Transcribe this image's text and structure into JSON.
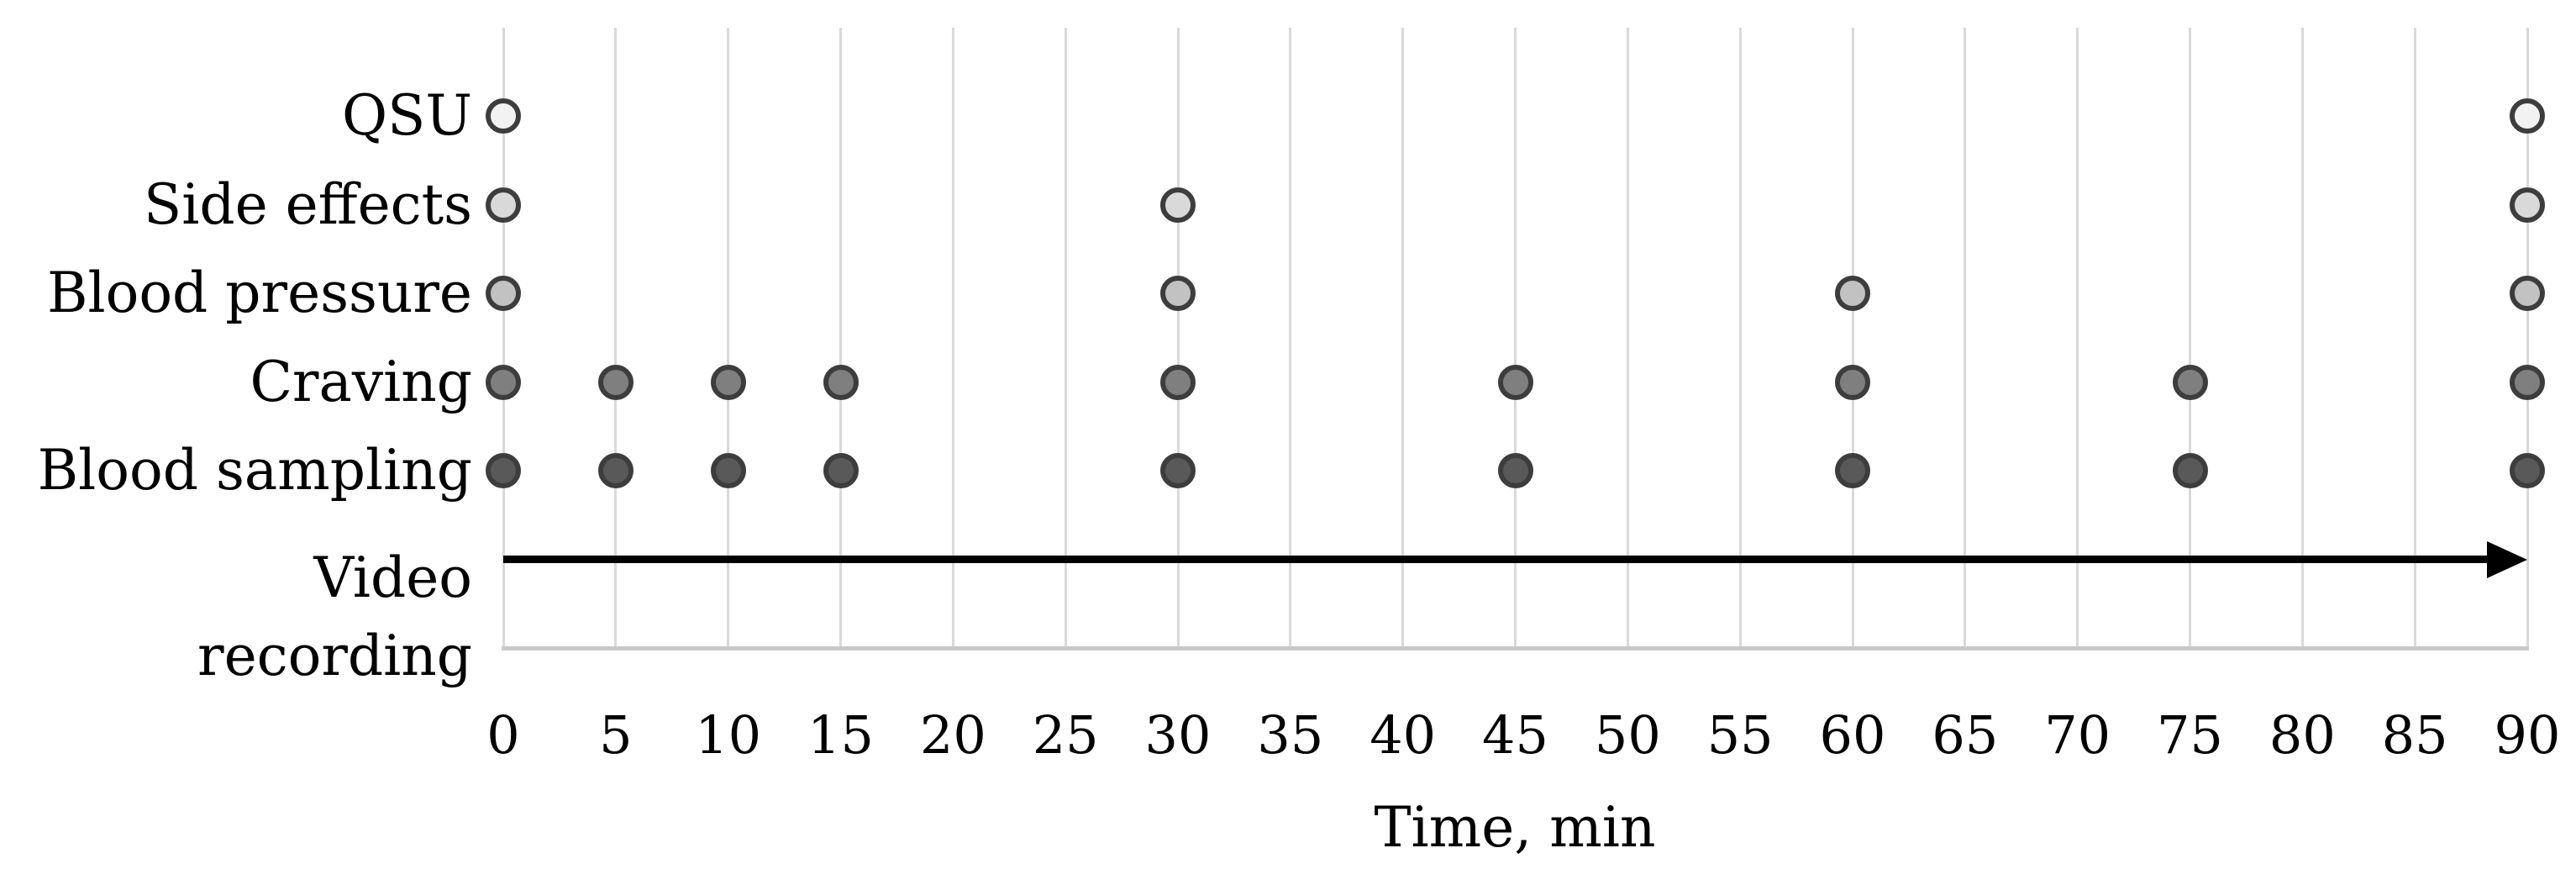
{
  "chart_data": {
    "type": "scatter",
    "title": "",
    "xlabel": "Time, min",
    "x_range": [
      0,
      90
    ],
    "x_ticks": [
      0,
      5,
      10,
      15,
      20,
      25,
      30,
      35,
      40,
      45,
      50,
      55,
      60,
      65,
      70,
      75,
      80,
      85,
      90
    ],
    "grid": "vertical-only",
    "categories": [
      "QSU",
      "Side effects",
      "Blood pressure",
      "Craving",
      "Blood sampling",
      "Video recording"
    ],
    "series": [
      {
        "name": "QSU",
        "times_min": [
          0,
          90
        ],
        "fill": "#f2f2f2",
        "border": "#3d3d3d"
      },
      {
        "name": "Side effects",
        "times_min": [
          0,
          30,
          90
        ],
        "fill": "#d9d9d9",
        "border": "#3d3d3d"
      },
      {
        "name": "Blood pressure",
        "times_min": [
          0,
          30,
          60,
          90
        ],
        "fill": "#c2c2c2",
        "border": "#3d3d3d"
      },
      {
        "name": "Craving",
        "times_min": [
          0,
          5,
          10,
          15,
          30,
          45,
          60,
          75,
          90
        ],
        "fill": "#7f7f7f",
        "border": "#3d3d3d"
      },
      {
        "name": "Blood sampling",
        "times_min": [
          0,
          5,
          10,
          15,
          30,
          45,
          60,
          75,
          90
        ],
        "fill": "#595959",
        "border": "#3d3d3d"
      }
    ],
    "video_recording": {
      "label_lines": [
        "Video",
        "recording"
      ],
      "arrow": {
        "from_min": 0,
        "to_min": 90,
        "color": "#000000"
      }
    },
    "colors": {
      "background": "#ffffff",
      "gridline": "#d9d9d9",
      "axis_line": "#c9c9c9",
      "text": "#000000",
      "arrow": "#000000"
    }
  }
}
